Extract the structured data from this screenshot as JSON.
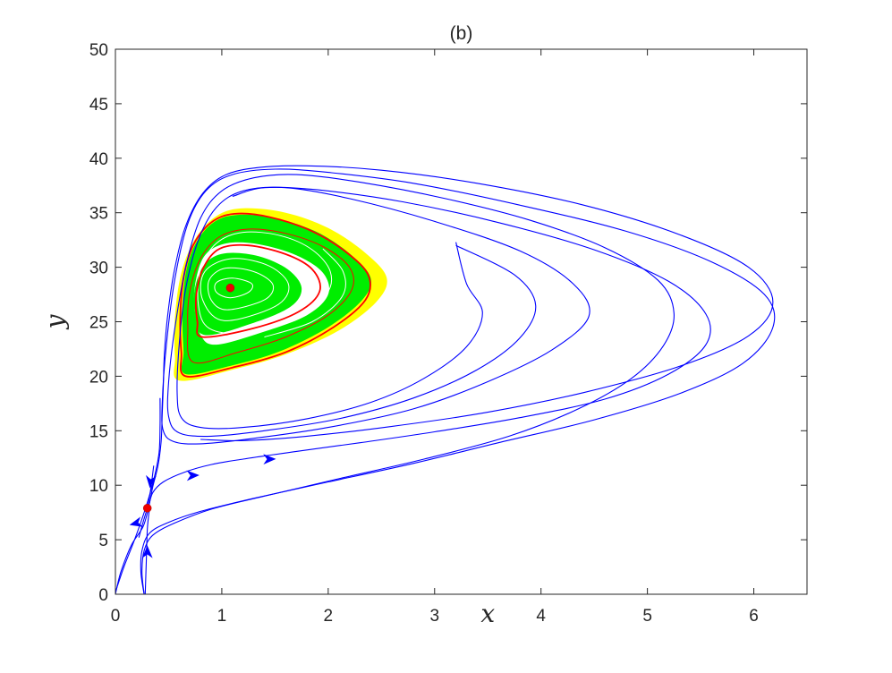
{
  "chart_data": {
    "type": "line",
    "title": "(b)",
    "xlabel": "x",
    "ylabel": "y",
    "xlim": [
      0,
      6.5
    ],
    "ylim": [
      0,
      50
    ],
    "xticks": [
      "0",
      "1",
      "2",
      "3",
      "4",
      "5",
      "6"
    ],
    "yticks": [
      "0",
      "5",
      "10",
      "15",
      "20",
      "25",
      "30",
      "35",
      "40",
      "45",
      "50"
    ],
    "grid": false,
    "colors": {
      "trajectories": "#0000ff",
      "outer_band": "#ffff00",
      "inner_band": "#00ee00",
      "limit_cycles": "#ff0000",
      "inner_orbits": "#ffffff",
      "equilibria": "#ee0000",
      "axes": "#262626"
    },
    "equilibria": [
      {
        "x": 1.08,
        "y": 28.1
      },
      {
        "x": 0.3,
        "y": 7.9
      }
    ],
    "trajectories": [
      {
        "points": [
          [
            0.27,
            0
          ],
          [
            0.24,
            2
          ],
          [
            0.25,
            4
          ],
          [
            0.32,
            5.6
          ],
          [
            0.5,
            6.6
          ],
          [
            0.8,
            7.6
          ],
          [
            1.3,
            8.8
          ],
          [
            2,
            10.3
          ],
          [
            2.8,
            12
          ],
          [
            3.6,
            13.9
          ],
          [
            4.5,
            16
          ],
          [
            5.3,
            18.4
          ],
          [
            5.9,
            21.2
          ],
          [
            6.18,
            24.5
          ],
          [
            6.1,
            27.5
          ],
          [
            5.6,
            30.5
          ],
          [
            4.8,
            33.3
          ],
          [
            3.8,
            35.7
          ],
          [
            2.8,
            37.7
          ],
          [
            2,
            38.7
          ],
          [
            1.5,
            39
          ],
          [
            1.1,
            38.5
          ],
          [
            0.85,
            37
          ],
          [
            0.68,
            34
          ],
          [
            0.56,
            29
          ],
          [
            0.48,
            23
          ],
          [
            0.44,
            17.5
          ],
          [
            0.45,
            15
          ],
          [
            0.55,
            14
          ],
          [
            0.8,
            13.8
          ],
          [
            1.3,
            14.3
          ],
          [
            2,
            15.3
          ],
          [
            2.8,
            17
          ],
          [
            3.5,
            19.5
          ],
          [
            4.1,
            22.4
          ],
          [
            4.45,
            25.5
          ],
          [
            4.3,
            28.5
          ],
          [
            3.8,
            31.5
          ],
          [
            3,
            34.2
          ],
          [
            2.2,
            36.3
          ],
          [
            1.6,
            37.3
          ],
          [
            1.2,
            37
          ],
          [
            0.95,
            35.5
          ],
          [
            0.78,
            32.5
          ],
          [
            0.66,
            28
          ],
          [
            0.6,
            23
          ],
          [
            0.58,
            18.5
          ],
          [
            0.62,
            16.2
          ],
          [
            0.8,
            15.3
          ],
          [
            1.2,
            15.3
          ],
          [
            1.8,
            16.1
          ],
          [
            2.4,
            17.6
          ],
          [
            2.9,
            19.8
          ],
          [
            3.3,
            22.7
          ],
          [
            3.45,
            25.8
          ],
          [
            3.3,
            28.5
          ],
          [
            3.2,
            32.3
          ]
        ]
      },
      {
        "points": [
          [
            0.27,
            0
          ],
          [
            0.25,
            2
          ],
          [
            0.27,
            4
          ],
          [
            0.35,
            5.4
          ],
          [
            0.55,
            6.5
          ],
          [
            0.9,
            7.8
          ],
          [
            1.4,
            9
          ],
          [
            2.1,
            10.6
          ],
          [
            2.9,
            12.4
          ],
          [
            3.7,
            14.5
          ],
          [
            4.35,
            17
          ],
          [
            4.85,
            19.8
          ],
          [
            5.15,
            22.8
          ],
          [
            5.25,
            25.8
          ],
          [
            5.1,
            28.8
          ],
          [
            4.6,
            31.8
          ],
          [
            3.9,
            34.3
          ],
          [
            3.1,
            36.3
          ],
          [
            2.3,
            37.8
          ],
          [
            1.7,
            38.5
          ],
          [
            1.3,
            38.2
          ],
          [
            1,
            37
          ],
          [
            0.8,
            34.5
          ],
          [
            0.66,
            30
          ],
          [
            0.56,
            24.5
          ],
          [
            0.5,
            19.5
          ],
          [
            0.5,
            16.3
          ],
          [
            0.6,
            14.8
          ],
          [
            0.9,
            14.5
          ],
          [
            1.4,
            15
          ],
          [
            2.1,
            16.1
          ],
          [
            2.8,
            18
          ],
          [
            3.4,
            20.6
          ],
          [
            3.8,
            23.5
          ],
          [
            3.95,
            26.5
          ],
          [
            3.75,
            29.3
          ],
          [
            3.2,
            32
          ]
        ]
      },
      {
        "points": [
          [
            0,
            0
          ],
          [
            0.05,
            2
          ],
          [
            0.15,
            4.5
          ],
          [
            0.26,
            6.2
          ],
          [
            0.31,
            7.9
          ],
          [
            0.35,
            9.8
          ],
          [
            0.4,
            11.8
          ],
          [
            0.43,
            14
          ],
          [
            0.44,
            16.5
          ],
          [
            0.45,
            19
          ],
          [
            0.46,
            22
          ],
          [
            0.49,
            25.5
          ],
          [
            0.55,
            29.5
          ],
          [
            0.65,
            33.5
          ],
          [
            0.8,
            36.5
          ],
          [
            1,
            38.3
          ],
          [
            1.3,
            39.1
          ],
          [
            1.8,
            39.3
          ],
          [
            2.5,
            38.9
          ],
          [
            3.4,
            37.7
          ],
          [
            4.4,
            35.7
          ],
          [
            5.3,
            33
          ],
          [
            5.95,
            30
          ],
          [
            6.18,
            26.8
          ],
          [
            5.95,
            23.7
          ],
          [
            5.3,
            20.9
          ],
          [
            4.4,
            18.5
          ],
          [
            3.5,
            16.7
          ],
          [
            2.6,
            15.4
          ],
          [
            1.8,
            14.5
          ],
          [
            1.2,
            14.1
          ],
          [
            0.8,
            14.2
          ]
        ]
      },
      {
        "points": [
          [
            0,
            0.2
          ],
          [
            0.08,
            2.5
          ],
          [
            0.18,
            5
          ],
          [
            0.28,
            7.8
          ],
          [
            0.36,
            10.5
          ],
          [
            0.41,
            13
          ],
          [
            0.42,
            15.5
          ],
          [
            0.42,
            18
          ]
        ]
      },
      {
        "points": [
          [
            0.28,
            0
          ],
          [
            0.29,
            3
          ],
          [
            0.3,
            6
          ],
          [
            0.32,
            7.9
          ]
        ]
      },
      {
        "points": [
          [
            0.31,
            7.9
          ],
          [
            0.35,
            9.3
          ],
          [
            0.45,
            10.3
          ],
          [
            0.65,
            11.2
          ],
          [
            0.9,
            11.9
          ],
          [
            1.2,
            12.4
          ],
          [
            1.7,
            13.1
          ],
          [
            2.3,
            13.9
          ],
          [
            3,
            14.9
          ],
          [
            3.8,
            16.2
          ],
          [
            4.6,
            17.9
          ],
          [
            5.2,
            20.2
          ],
          [
            5.55,
            22.9
          ],
          [
            5.55,
            25.7
          ],
          [
            5.2,
            28.7
          ],
          [
            4.5,
            31.6
          ],
          [
            3.6,
            34.1
          ],
          [
            2.7,
            36
          ],
          [
            1.9,
            37.1
          ],
          [
            1.4,
            37.3
          ],
          [
            1.1,
            36.5
          ]
        ]
      },
      {
        "points": [
          [
            0.36,
            11.8
          ],
          [
            0.33,
            9.5
          ],
          [
            0.3,
            7.9
          ]
        ]
      },
      {
        "points": [
          [
            0.22,
            5.2
          ],
          [
            0.26,
            6.6
          ],
          [
            0.3,
            7.9
          ]
        ]
      }
    ],
    "outer_band": [
      [
        0.6,
        19.6
      ],
      [
        1.1,
        20.6
      ],
      [
        1.6,
        22
      ],
      [
        2.1,
        24.2
      ],
      [
        2.45,
        26.8
      ],
      [
        2.55,
        29
      ],
      [
        2.35,
        31.3
      ],
      [
        2,
        33.6
      ],
      [
        1.6,
        35
      ],
      [
        1.2,
        35.4
      ],
      [
        0.95,
        34.7
      ],
      [
        0.75,
        32.6
      ],
      [
        0.62,
        29.5
      ],
      [
        0.56,
        25.5
      ],
      [
        0.56,
        21.8
      ]
    ],
    "inner_band": [
      [
        0.66,
        20.2
      ],
      [
        1.1,
        21
      ],
      [
        1.55,
        22.3
      ],
      [
        2,
        24.5
      ],
      [
        2.32,
        27
      ],
      [
        2.4,
        29
      ],
      [
        2.22,
        31.1
      ],
      [
        1.9,
        33.2
      ],
      [
        1.5,
        34.5
      ],
      [
        1.15,
        34.8
      ],
      [
        0.92,
        34.1
      ],
      [
        0.75,
        32.1
      ],
      [
        0.66,
        29.4
      ],
      [
        0.63,
        25.8
      ],
      [
        0.64,
        22.3
      ]
    ],
    "white_hole": [
      [
        0.95,
        22.9
      ],
      [
        1.4,
        24.1
      ],
      [
        1.8,
        25.6
      ],
      [
        2,
        27.5
      ],
      [
        1.95,
        29.5
      ],
      [
        1.7,
        31.1
      ],
      [
        1.35,
        32.1
      ],
      [
        1.05,
        32.2
      ],
      [
        0.85,
        31.2
      ],
      [
        0.76,
        29
      ],
      [
        0.74,
        26.3
      ],
      [
        0.8,
        23.8
      ]
    ],
    "green_core": [
      [
        0.83,
        23.8
      ],
      [
        1.3,
        24.9
      ],
      [
        1.65,
        26.4
      ],
      [
        1.75,
        28.1
      ],
      [
        1.62,
        29.8
      ],
      [
        1.35,
        31
      ],
      [
        1.05,
        31.3
      ],
      [
        0.86,
        30.5
      ],
      [
        0.76,
        28.6
      ],
      [
        0.74,
        26.2
      ]
    ],
    "limit_cycles": [
      [
        [
          0.66,
          20
        ],
        [
          1.1,
          20.8
        ],
        [
          1.6,
          22.2
        ],
        [
          2.05,
          24.5
        ],
        [
          2.35,
          27
        ],
        [
          2.38,
          29.2
        ],
        [
          2.18,
          31.3
        ],
        [
          1.85,
          33.3
        ],
        [
          1.45,
          34.6
        ],
        [
          1.12,
          34.9
        ],
        [
          0.9,
          34.1
        ],
        [
          0.73,
          32
        ],
        [
          0.64,
          29
        ],
        [
          0.61,
          25.5
        ],
        [
          0.62,
          22.2
        ]
      ],
      [
        [
          0.73,
          21.3
        ],
        [
          1.15,
          22.2
        ],
        [
          1.6,
          23.6
        ],
        [
          2,
          25.6
        ],
        [
          2.22,
          27.9
        ],
        [
          2.2,
          30
        ],
        [
          1.95,
          31.9
        ],
        [
          1.6,
          33.1
        ],
        [
          1.25,
          33.5
        ],
        [
          0.98,
          32.8
        ],
        [
          0.8,
          30.8
        ],
        [
          0.7,
          27.8
        ],
        [
          0.68,
          24.6
        ]
      ],
      [
        [
          0.82,
          23.6
        ],
        [
          1.3,
          24.4
        ],
        [
          1.72,
          25.9
        ],
        [
          1.92,
          27.8
        ],
        [
          1.85,
          29.8
        ],
        [
          1.6,
          31.2
        ],
        [
          1.25,
          32
        ],
        [
          0.98,
          31.7
        ],
        [
          0.83,
          30
        ],
        [
          0.76,
          27.5
        ],
        [
          0.77,
          25
        ]
      ]
    ],
    "inner_orbits": [
      [
        [
          1.08,
          27.2
        ],
        [
          1.25,
          27.7
        ],
        [
          1.28,
          28.5
        ],
        [
          1.1,
          29
        ],
        [
          0.95,
          28.6
        ],
        [
          0.95,
          27.7
        ]
      ],
      [
        [
          1.05,
          26.1
        ],
        [
          1.4,
          27
        ],
        [
          1.48,
          28.4
        ],
        [
          1.3,
          29.6
        ],
        [
          1.03,
          29.9
        ],
        [
          0.88,
          28.8
        ],
        [
          0.9,
          27
        ]
      ],
      [
        [
          1.02,
          25.1
        ],
        [
          1.5,
          26.4
        ],
        [
          1.63,
          28.3
        ],
        [
          1.45,
          30.1
        ],
        [
          1.1,
          30.8
        ],
        [
          0.84,
          29.6
        ],
        [
          0.82,
          27
        ]
      ],
      [
        [
          1.2,
          24
        ],
        [
          1.68,
          25.4
        ],
        [
          1.98,
          27.5
        ],
        [
          2.02,
          29.6
        ],
        [
          1.85,
          31.6
        ],
        [
          1.55,
          32.9
        ],
        [
          1.2,
          33.2
        ],
        [
          0.95,
          32.2
        ],
        [
          0.8,
          29.8
        ],
        [
          0.78,
          26.5
        ],
        [
          0.88,
          24.4
        ]
      ],
      [
        [
          1.4,
          23.6
        ],
        [
          1.85,
          25
        ],
        [
          2.13,
          27.3
        ],
        [
          2.14,
          29.6
        ],
        [
          1.95,
          31.7
        ]
      ]
    ],
    "arrows": [
      {
        "x": 0.33,
        "y": 10.3,
        "dx": -0.01,
        "dy": -1
      },
      {
        "x": 0.19,
        "y": 6.5,
        "dx": -0.4,
        "dy": -1
      },
      {
        "x": 0.3,
        "y": 3.9,
        "dx": 0,
        "dy": 1
      },
      {
        "x": 0.73,
        "y": 10.9,
        "dx": 1,
        "dy": 0.3
      },
      {
        "x": 1.45,
        "y": 12.4,
        "dx": 1,
        "dy": 0.2
      }
    ]
  }
}
